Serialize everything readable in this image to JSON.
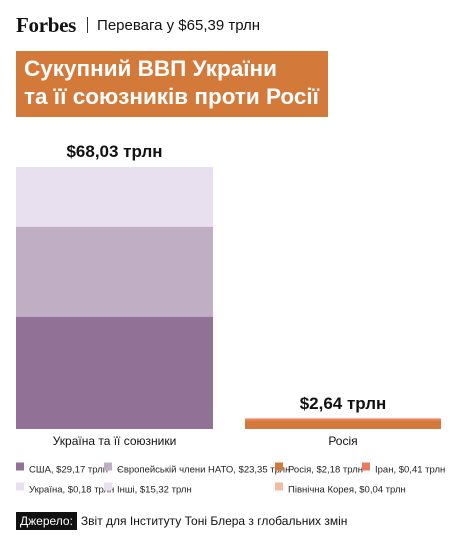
{
  "header": {
    "logo": "Forbes",
    "subtitle": "Перевага у $65,39 трлн"
  },
  "title": {
    "line1": "Сукупний ВВП України",
    "line2": "та її союзників проти Росії"
  },
  "chart_data": {
    "type": "stacked-bar",
    "categories": [
      "Україна та її союзники",
      "Росія"
    ],
    "totals_labels": [
      "$68,03 трлн",
      "$2,64 трлн"
    ],
    "totals": [
      68.03,
      2.64
    ],
    "unit": "трлн $",
    "ylim": [
      0,
      68.03
    ],
    "grid": false,
    "stacks": [
      {
        "category": "Україна та її союзники",
        "segments": [
          {
            "name": "США",
            "value": 29.17,
            "color": "#917196"
          },
          {
            "name": "Європейській члени НАТО",
            "value": 23.35,
            "color": "#bfaec4"
          },
          {
            "name": "Україна",
            "value": 0.18,
            "color": "#e8e0ef"
          },
          {
            "name": "Інші",
            "value": 15.32,
            "color": "#e8e0ef"
          }
        ]
      },
      {
        "category": "Росія",
        "segments": [
          {
            "name": "Росія",
            "value": 2.18,
            "color": "#d37a3a"
          },
          {
            "name": "Іран",
            "value": 0.41,
            "color": "#ea7a5e"
          },
          {
            "name": "Північна Корея",
            "value": 0.04,
            "color": "#f4b9a4"
          }
        ]
      }
    ],
    "legend": [
      {
        "label": "США, $29,17 трлн",
        "color": "#917196"
      },
      {
        "label": "Європейській члени НАТО, $23,35 трлн",
        "color": "#bfaec4"
      },
      {
        "label": "Росія, $2,18 трлн",
        "color": "#d37a3a"
      },
      {
        "label": "Іран, $0,41 трлн",
        "color": "#ea7a5e"
      },
      {
        "label": "Україна, $0,18 трлн",
        "color": "#e8e0ef"
      },
      {
        "label": "Інші, $15,32 трлн",
        "color": "#e8e0ef"
      },
      {
        "label": "Північна Корея, $0,04 трлн",
        "color": "#f4b9a4"
      }
    ],
    "legend_position": "bottom"
  },
  "source": {
    "label": "Джерело:",
    "text": "Звіт для Інституту Тоні Блера з глобальних змін"
  }
}
